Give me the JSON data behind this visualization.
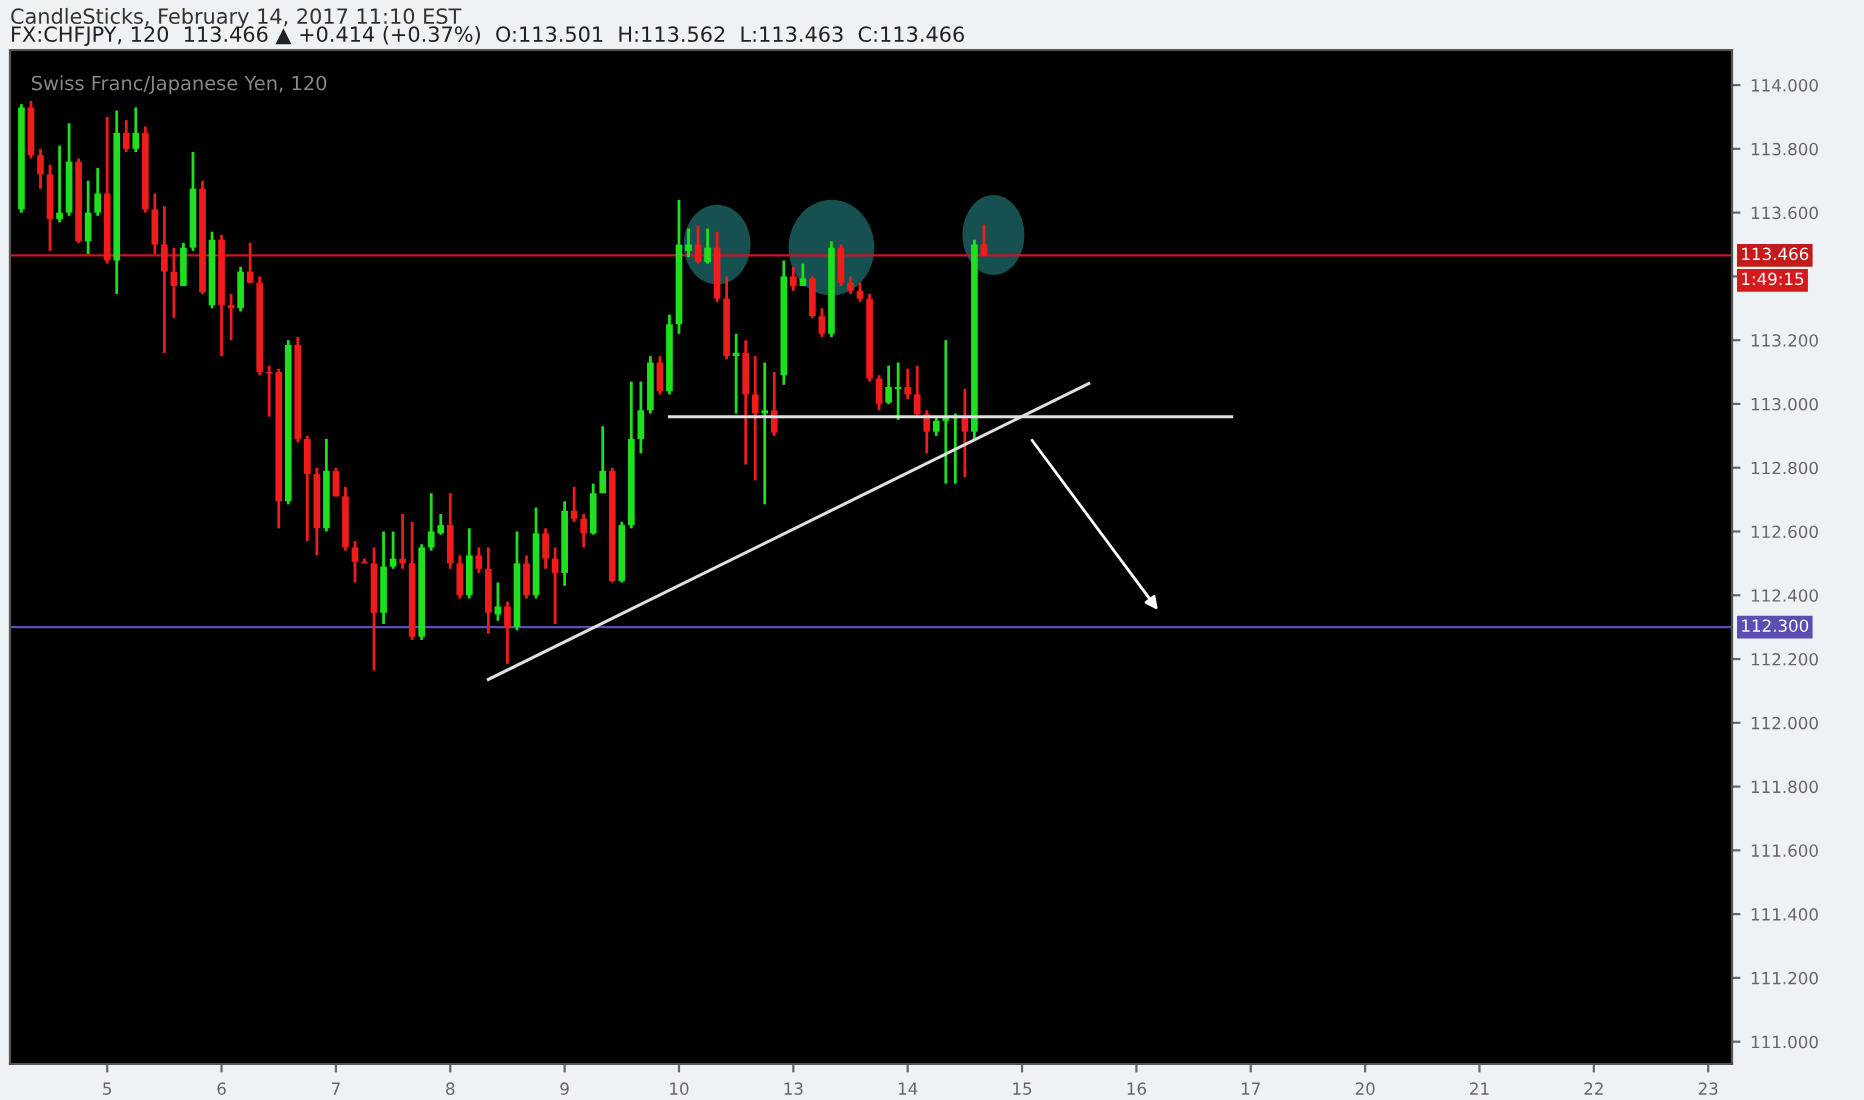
{
  "chart_data": {
    "type": "candlestick",
    "title": "FX:CHFJPY, 120  113.466 ▲ +0.414 (+0.37%)  O:113.501  H:113.562  L:113.463  C:113.466",
    "subtitle": "CandleSticks, February 14, 2017 11:10 EST",
    "annotations": [
      "Swiss Franc/Japanese Yen, 120",
      "1:49:15"
    ],
    "categories": [
      null,
      null,
      null,
      null,
      null,
      null,
      null,
      null,
      null,
      "5",
      null,
      null,
      null,
      null,
      null,
      null,
      null,
      null,
      null,
      null,
      null,
      "6",
      null,
      null,
      null,
      null,
      null,
      null,
      null,
      null,
      null,
      null,
      null,
      "7",
      null,
      null,
      null,
      null,
      null,
      null,
      null,
      null,
      null,
      null,
      null,
      "8",
      null,
      null,
      null,
      null,
      null,
      null,
      null,
      null,
      null,
      null,
      null,
      "9",
      null,
      null,
      null,
      null,
      null,
      null,
      null,
      null,
      null,
      null,
      null,
      "10",
      null,
      null,
      null,
      null,
      null,
      null,
      null,
      null,
      null,
      null,
      null,
      "13",
      null,
      null,
      null,
      null,
      null,
      null,
      null,
      null,
      null,
      null,
      null,
      "14",
      null,
      null,
      null,
      null,
      null,
      null,
      null,
      null,
      null,
      null,
      null,
      "15",
      null,
      null,
      null,
      null,
      null,
      null,
      null,
      null,
      null,
      null,
      null,
      "16",
      null,
      null,
      null,
      null,
      null,
      null,
      null,
      null,
      null,
      null,
      null,
      "17",
      null,
      null,
      null,
      null,
      null,
      null,
      null,
      null,
      null,
      null,
      null,
      "20",
      null,
      null,
      null,
      null,
      null,
      null,
      null,
      null,
      null,
      null,
      null,
      "21",
      null,
      null,
      null,
      null,
      null,
      null,
      null,
      null,
      null,
      null,
      null,
      "22",
      null,
      null,
      null,
      null,
      null,
      null,
      null,
      null,
      null,
      null,
      null,
      "23",
      null,
      null
    ],
    "ohlc": [
      [
        113.61,
        113.94,
        113.6,
        113.93
      ],
      [
        113.93,
        113.95,
        113.77,
        113.78
      ],
      [
        113.78,
        113.8,
        113.675,
        113.72
      ],
      [
        113.72,
        113.75,
        113.48,
        113.58
      ],
      [
        113.58,
        113.81,
        113.57,
        113.6
      ],
      [
        113.6,
        113.88,
        113.59,
        113.76
      ],
      [
        113.76,
        113.77,
        113.505,
        113.51
      ],
      [
        113.51,
        113.7,
        113.47,
        113.6
      ],
      [
        113.6,
        113.74,
        113.59,
        113.66
      ],
      [
        113.66,
        113.9,
        113.44,
        113.45
      ],
      [
        113.45,
        113.92,
        113.345,
        113.85
      ],
      [
        113.85,
        113.89,
        113.79,
        113.8
      ],
      [
        113.8,
        113.93,
        113.79,
        113.85
      ],
      [
        113.85,
        113.87,
        113.6,
        113.61
      ],
      [
        113.61,
        113.66,
        113.47,
        113.5
      ],
      [
        113.5,
        113.62,
        113.16,
        113.415
      ],
      [
        113.415,
        113.49,
        113.27,
        113.37
      ],
      [
        113.37,
        113.505,
        113.37,
        113.49
      ],
      [
        113.49,
        113.79,
        113.48,
        113.675
      ],
      [
        113.675,
        113.7,
        113.345,
        113.35
      ],
      [
        113.31,
        113.54,
        113.3,
        113.515
      ],
      [
        113.515,
        113.53,
        113.15,
        113.31
      ],
      [
        113.31,
        113.345,
        113.2,
        113.3
      ],
      [
        113.3,
        113.43,
        113.29,
        113.415
      ],
      [
        113.415,
        113.505,
        113.38,
        113.38
      ],
      [
        113.38,
        113.4,
        113.09,
        113.1
      ],
      [
        113.1,
        113.12,
        112.96,
        113.095
      ],
      [
        113.1,
        113.11,
        112.61,
        112.695
      ],
      [
        112.695,
        113.2,
        112.685,
        113.185
      ],
      [
        113.185,
        113.21,
        112.88,
        112.89
      ],
      [
        112.89,
        112.9,
        112.57,
        112.78
      ],
      [
        112.78,
        112.8,
        112.525,
        112.61
      ],
      [
        112.61,
        112.89,
        112.6,
        112.79
      ],
      [
        112.79,
        112.8,
        112.71,
        112.71
      ],
      [
        112.71,
        112.74,
        112.54,
        112.55
      ],
      [
        112.55,
        112.57,
        112.44,
        112.505
      ],
      [
        112.505,
        112.515,
        112.5,
        112.5
      ],
      [
        112.5,
        112.55,
        112.164,
        112.345
      ],
      [
        112.345,
        112.6,
        112.31,
        112.49
      ],
      [
        112.49,
        112.6,
        112.483,
        112.515
      ],
      [
        112.515,
        112.655,
        112.483,
        112.5
      ],
      [
        112.5,
        112.63,
        112.26,
        112.27
      ],
      [
        112.27,
        112.56,
        112.26,
        112.55
      ],
      [
        112.55,
        112.72,
        112.54,
        112.6
      ],
      [
        112.594,
        112.655,
        112.59,
        112.62
      ],
      [
        112.62,
        112.72,
        112.483,
        112.5
      ],
      [
        112.5,
        112.525,
        112.39,
        112.4
      ],
      [
        112.4,
        112.61,
        112.39,
        112.525
      ],
      [
        112.525,
        112.55,
        112.47,
        112.483
      ],
      [
        112.483,
        112.55,
        112.28,
        112.345
      ],
      [
        112.34,
        112.44,
        112.32,
        112.365
      ],
      [
        112.365,
        112.38,
        112.185,
        112.3
      ],
      [
        112.3,
        112.6,
        112.29,
        112.5
      ],
      [
        112.5,
        112.525,
        112.39,
        112.4
      ],
      [
        112.4,
        112.675,
        112.39,
        112.594
      ],
      [
        112.594,
        112.61,
        112.483,
        112.515
      ],
      [
        112.515,
        112.55,
        112.31,
        112.47
      ],
      [
        112.47,
        112.695,
        112.43,
        112.665
      ],
      [
        112.665,
        112.74,
        112.63,
        112.64
      ],
      [
        112.64,
        112.655,
        112.55,
        112.594
      ],
      [
        112.594,
        112.75,
        112.59,
        112.72
      ],
      [
        112.72,
        112.93,
        112.72,
        112.79
      ],
      [
        112.79,
        112.8,
        112.44,
        112.445
      ],
      [
        112.445,
        112.63,
        112.44,
        112.62
      ],
      [
        112.62,
        113.07,
        112.61,
        112.89
      ],
      [
        112.89,
        113.07,
        112.845,
        112.98
      ],
      [
        112.98,
        113.15,
        112.97,
        113.13
      ],
      [
        113.13,
        113.15,
        113.03,
        113.04
      ],
      [
        113.04,
        113.28,
        113.03,
        113.25
      ],
      [
        113.25,
        113.64,
        113.22,
        113.5
      ],
      [
        113.48,
        113.55,
        113.46,
        113.5
      ],
      [
        113.5,
        113.56,
        113.44,
        113.445
      ],
      [
        113.445,
        113.55,
        113.44,
        113.49
      ],
      [
        113.49,
        113.54,
        113.32,
        113.33
      ],
      [
        113.33,
        113.4,
        113.14,
        113.15
      ],
      [
        113.15,
        113.22,
        112.97,
        113.16
      ],
      [
        113.16,
        113.2,
        112.81,
        113.03
      ],
      [
        113.03,
        113.15,
        112.76,
        112.97
      ],
      [
        112.97,
        113.13,
        112.685,
        112.98
      ],
      [
        112.98,
        113.1,
        112.9,
        112.91
      ],
      [
        113.09,
        113.45,
        113.06,
        113.4
      ],
      [
        113.4,
        113.43,
        113.355,
        113.37
      ],
      [
        113.37,
        113.44,
        113.37,
        113.394
      ],
      [
        113.394,
        113.4,
        113.27,
        113.275
      ],
      [
        113.275,
        113.3,
        113.21,
        113.22
      ],
      [
        113.22,
        113.51,
        113.21,
        113.49
      ],
      [
        113.49,
        113.5,
        113.37,
        113.38
      ],
      [
        113.38,
        113.4,
        113.345,
        113.355
      ],
      [
        113.355,
        113.38,
        113.32,
        113.33
      ],
      [
        113.33,
        113.345,
        113.07,
        113.08
      ],
      [
        113.08,
        113.09,
        112.98,
        113.0
      ],
      [
        113.004,
        113.12,
        113.0,
        113.053
      ],
      [
        113.047,
        113.13,
        112.95,
        113.053
      ],
      [
        113.053,
        113.11,
        113.015,
        113.03
      ],
      [
        113.03,
        113.12,
        112.96,
        112.968
      ],
      [
        112.968,
        112.98,
        112.845,
        112.913
      ],
      [
        112.913,
        112.96,
        112.9,
        112.947
      ],
      [
        112.947,
        113.2,
        112.75,
        112.96
      ],
      [
        112.955,
        112.97,
        112.75,
        112.96
      ],
      [
        112.96,
        113.047,
        112.77,
        112.913
      ],
      [
        112.913,
        113.515,
        112.89,
        113.5
      ],
      [
        113.501,
        113.562,
        113.463,
        113.466
      ],
      null,
      null,
      null,
      null,
      null,
      null,
      null,
      null,
      null,
      null,
      null,
      null,
      null,
      null,
      null,
      null,
      null,
      null,
      null,
      null,
      null,
      null,
      null,
      null,
      null,
      null,
      null,
      null,
      null,
      null,
      null,
      null,
      null,
      null,
      null,
      null,
      null,
      null,
      null,
      null,
      null,
      null,
      null,
      null,
      null,
      null,
      null,
      null,
      null,
      null,
      null,
      null,
      null,
      null,
      null,
      null,
      null,
      null,
      null,
      null,
      null,
      null,
      null,
      null,
      null,
      null,
      null,
      null,
      null,
      null,
      null,
      null,
      null,
      null,
      null,
      null,
      null,
      null
    ],
    "colors": [
      "#1fe01f",
      "#f01c1c",
      "#f01c1c",
      "#f01c1c",
      "#1fe01f",
      "#1fe01f",
      "#f01c1c",
      "#1fe01f",
      "#1fe01f",
      "#f01c1c",
      "#1fe01f",
      "#f01c1c",
      "#1fe01f",
      "#f01c1c",
      "#f01c1c",
      "#f01c1c",
      "#f01c1c",
      "#1fe01f",
      "#1fe01f",
      "#f01c1c",
      "#1fe01f",
      "#f01c1c",
      "#f01c1c",
      "#1fe01f",
      "#f01c1c",
      "#f01c1c",
      "#f01c1c",
      "#f01c1c",
      "#1fe01f",
      "#f01c1c",
      "#f01c1c",
      "#f01c1c",
      "#1fe01f",
      "#f01c1c",
      "#f01c1c",
      "#f01c1c",
      "#f01c1c",
      "#f01c1c",
      "#1fe01f",
      "#1fe01f",
      "#f01c1c",
      "#f01c1c",
      "#1fe01f",
      "#1fe01f",
      "#1fe01f",
      "#f01c1c",
      "#f01c1c",
      "#1fe01f",
      "#f01c1c",
      "#f01c1c",
      "#1fe01f",
      "#f01c1c",
      "#1fe01f",
      "#f01c1c",
      "#1fe01f",
      "#f01c1c",
      "#f01c1c",
      "#1fe01f",
      "#f01c1c",
      "#f01c1c",
      "#1fe01f",
      "#1fe01f",
      "#f01c1c",
      "#1fe01f",
      "#1fe01f",
      "#1fe01f",
      "#1fe01f",
      "#f01c1c",
      "#1fe01f",
      "#1fe01f",
      "#1fe01f",
      "#f01c1c",
      "#1fe01f",
      "#f01c1c",
      "#f01c1c",
      "#1fe01f",
      "#f01c1c",
      "#f01c1c",
      "#1fe01f",
      "#f01c1c",
      "#1fe01f",
      "#f01c1c",
      "#1fe01f",
      "#f01c1c",
      "#f01c1c",
      "#1fe01f",
      "#f01c1c",
      "#f01c1c",
      "#f01c1c",
      "#f01c1c",
      "#f01c1c",
      "#1fe01f",
      "#1fe01f",
      "#f01c1c",
      "#f01c1c",
      "#f01c1c",
      "#1fe01f",
      "#1fe01f",
      "#1fe01f",
      "#f01c1c",
      "#1fe01f",
      "#f01c1c",
      null,
      null,
      null,
      null,
      null,
      null,
      null,
      null,
      null,
      null,
      null,
      null,
      null,
      null,
      null,
      null,
      null,
      null,
      null,
      null,
      null,
      null,
      null,
      null,
      null,
      null,
      null,
      null,
      null,
      null,
      null,
      null,
      null,
      null,
      null,
      null,
      null,
      null,
      null,
      null,
      null,
      null,
      null,
      null,
      null,
      null,
      null,
      null,
      null,
      null,
      null,
      null,
      null,
      null,
      null,
      null,
      null,
      null,
      null,
      null,
      null,
      null,
      null,
      null,
      null,
      null,
      null,
      null,
      null,
      null,
      null,
      null,
      null,
      null,
      null,
      null,
      null,
      null
    ],
    "series": [
      {
        "type": "line",
        "color": "#e0e0e0",
        "values": [
          null,
          null,
          null,
          null,
          null,
          null,
          null,
          null,
          null,
          null,
          null,
          null,
          null,
          null,
          null,
          null,
          null,
          null,
          null,
          null,
          null,
          null,
          null,
          null,
          null,
          null,
          null,
          null,
          null,
          null,
          null,
          null,
          null,
          null,
          null,
          null,
          null,
          null,
          null,
          null,
          null,
          null,
          null,
          null,
          null,
          null,
          null,
          null,
          null,
          null,
          null,
          null,
          null,
          null,
          null,
          null,
          null,
          null,
          null,
          null,
          null,
          null,
          null,
          null,
          null,
          null,
          null,
          null,
          112.96,
          null,
          null,
          null,
          null,
          null,
          null,
          null,
          null,
          null,
          null,
          null,
          null,
          null,
          null,
          null,
          null,
          null,
          null,
          null,
          null,
          null,
          null,
          null,
          null,
          null,
          null,
          null,
          null,
          null,
          null,
          null,
          null,
          null,
          null,
          null,
          null,
          null,
          null,
          null,
          null,
          null,
          null,
          null,
          null,
          null,
          null,
          null,
          null,
          null,
          null,
          null,
          null,
          null,
          null,
          null,
          null,
          null,
          null,
          112.96,
          null,
          null,
          null,
          null,
          null,
          null,
          null,
          null,
          null,
          null,
          null,
          null,
          null,
          null,
          null,
          null,
          null,
          null,
          null,
          null,
          null,
          null,
          null,
          null,
          null,
          null,
          null,
          null,
          null,
          null,
          null,
          null,
          null,
          null,
          null,
          null,
          null,
          null,
          null,
          null,
          null,
          null,
          null,
          null,
          null,
          null,
          null,
          null,
          null,
          null,
          null,
          null
        ]
      },
      {
        "type": "line",
        "color": "#e0e0e0",
        "values": [
          null,
          null,
          null,
          null,
          null,
          null,
          null,
          null,
          null,
          null,
          null,
          null,
          null,
          null,
          null,
          null,
          null,
          null,
          null,
          null,
          null,
          null,
          null,
          null,
          null,
          null,
          null,
          null,
          null,
          null,
          null,
          null,
          null,
          null,
          null,
          null,
          null,
          null,
          null,
          null,
          null,
          null,
          null,
          null,
          null,
          null,
          null,
          null,
          null,
          112.136,
          null,
          null,
          null,
          null,
          null,
          null,
          null,
          null,
          null,
          null,
          null,
          null,
          null,
          null,
          null,
          null,
          null,
          null,
          null,
          null,
          null,
          null,
          null,
          null,
          null,
          null,
          null,
          null,
          null,
          null,
          null,
          null,
          null,
          null,
          null,
          null,
          null,
          null,
          null,
          null,
          null,
          null,
          null,
          null,
          null,
          null,
          null,
          null,
          null,
          null,
          null,
          null,
          null,
          null,
          null,
          null,
          null,
          null,
          null,
          null,
          null,
          null,
          113.064,
          null,
          null,
          null,
          null,
          null,
          null,
          null,
          null,
          null,
          null,
          null,
          null,
          null,
          null,
          null,
          null,
          null,
          null,
          null,
          null,
          null,
          null,
          null,
          null,
          null,
          null,
          null,
          null,
          null,
          null,
          null,
          null,
          null,
          null,
          null,
          null,
          null,
          null,
          null,
          null,
          null,
          null,
          null,
          null,
          null,
          null,
          null,
          null,
          null,
          null,
          null,
          null,
          null,
          null,
          null,
          null,
          null,
          null,
          null,
          null,
          null,
          null,
          null,
          null,
          null,
          null,
          null
        ]
      }
    ],
    "ref_lines": [
      {
        "axis": "y",
        "value": 113.466,
        "label": "113.466",
        "color": "#c41a1a"
      },
      {
        "axis": "y",
        "value": 112.3,
        "label": "112.300",
        "color": "#5a4fb0"
      }
    ],
    "ylim": [
      110.93,
      114.11
    ],
    "yticks": [
      {
        "value": 111,
        "label": "111.000"
      },
      {
        "value": 111.2,
        "label": "111.200"
      },
      {
        "value": 111.4,
        "label": "111.400"
      },
      {
        "value": 111.6,
        "label": "111.600"
      },
      {
        "value": 111.8,
        "label": "111.800"
      },
      {
        "value": 112,
        "label": "112.000"
      },
      {
        "value": 112.2,
        "label": "112.200"
      },
      {
        "value": 112.4,
        "label": "112.400"
      },
      {
        "value": 112.6,
        "label": "112.600"
      },
      {
        "value": 112.8,
        "label": "112.800"
      },
      {
        "value": 113,
        "label": "113.000"
      },
      {
        "value": 113.2,
        "label": "113.200"
      },
      {
        "value": 113.4,
        "label": null
      },
      {
        "value": 113.6,
        "label": "113.600"
      },
      {
        "value": 113.8,
        "label": "113.800"
      },
      {
        "value": 114,
        "label": "114.000"
      }
    ]
  }
}
